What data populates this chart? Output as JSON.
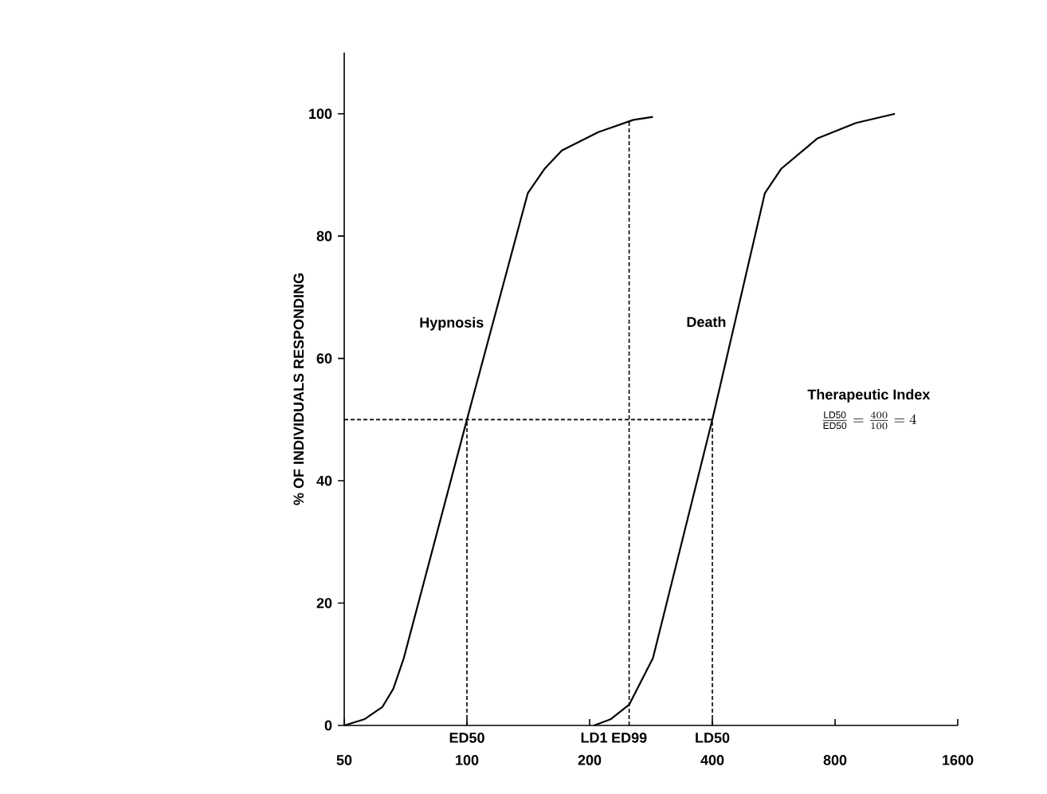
{
  "chart_data": {
    "type": "line",
    "ylabel": "% OF INDIVIDUALS RESPONDING",
    "log": "x",
    "xlim": [
      50,
      1600
    ],
    "ylim": [
      0,
      110
    ],
    "xticks": [
      50,
      100,
      200,
      400,
      800,
      1600
    ],
    "yticks": [
      0,
      20,
      40,
      60,
      80,
      100
    ],
    "series": [
      {
        "name": "Hypnosis",
        "color": "#000000",
        "line_style": "solid",
        "x": [
          50,
          56,
          62,
          66,
          70,
          100,
          141,
          155,
          171,
          210,
          256,
          286
        ],
        "values": [
          0,
          1,
          3,
          6,
          11,
          50,
          87,
          91,
          94,
          97,
          99,
          99.5
        ]
      },
      {
        "name": "Death",
        "color": "#000000",
        "line_style": "solid",
        "x": [
          205,
          225,
          250,
          286,
          400,
          538,
          590,
          725,
          900,
          1122
        ],
        "values": [
          0,
          1,
          3.4,
          11,
          50,
          87,
          91,
          96,
          98.5,
          100
        ]
      },
      {
        "color": "#000000",
        "line_style": "dashed",
        "x": [
          50,
          400
        ],
        "values": [
          50,
          50
        ]
      },
      {
        "color": "#000000",
        "line_style": "dashed",
        "x": [
          100,
          100
        ],
        "values": [
          0,
          50
        ]
      },
      {
        "color": "#000000",
        "line_style": "dashed",
        "x": [
          250,
          250
        ],
        "values": [
          0,
          99
        ]
      },
      {
        "color": "#000000",
        "line_style": "dashed",
        "x": [
          400,
          400
        ],
        "values": [
          0,
          50
        ]
      }
    ],
    "annotations": [
      "Therapeutic Index",
      "\\frac{\\mathrm{LD50}}{\\mathrm{ED50}}=\\frac{400}{100}=4",
      {
        "text": "ED50",
        "x": 100,
        "y": 0
      },
      {
        "text": "LD1",
        "x": 205,
        "y": 0
      },
      {
        "text": "ED99",
        "x": 250,
        "y": 0
      },
      {
        "text": "LD50",
        "x": 400,
        "y": 0
      }
    ]
  }
}
